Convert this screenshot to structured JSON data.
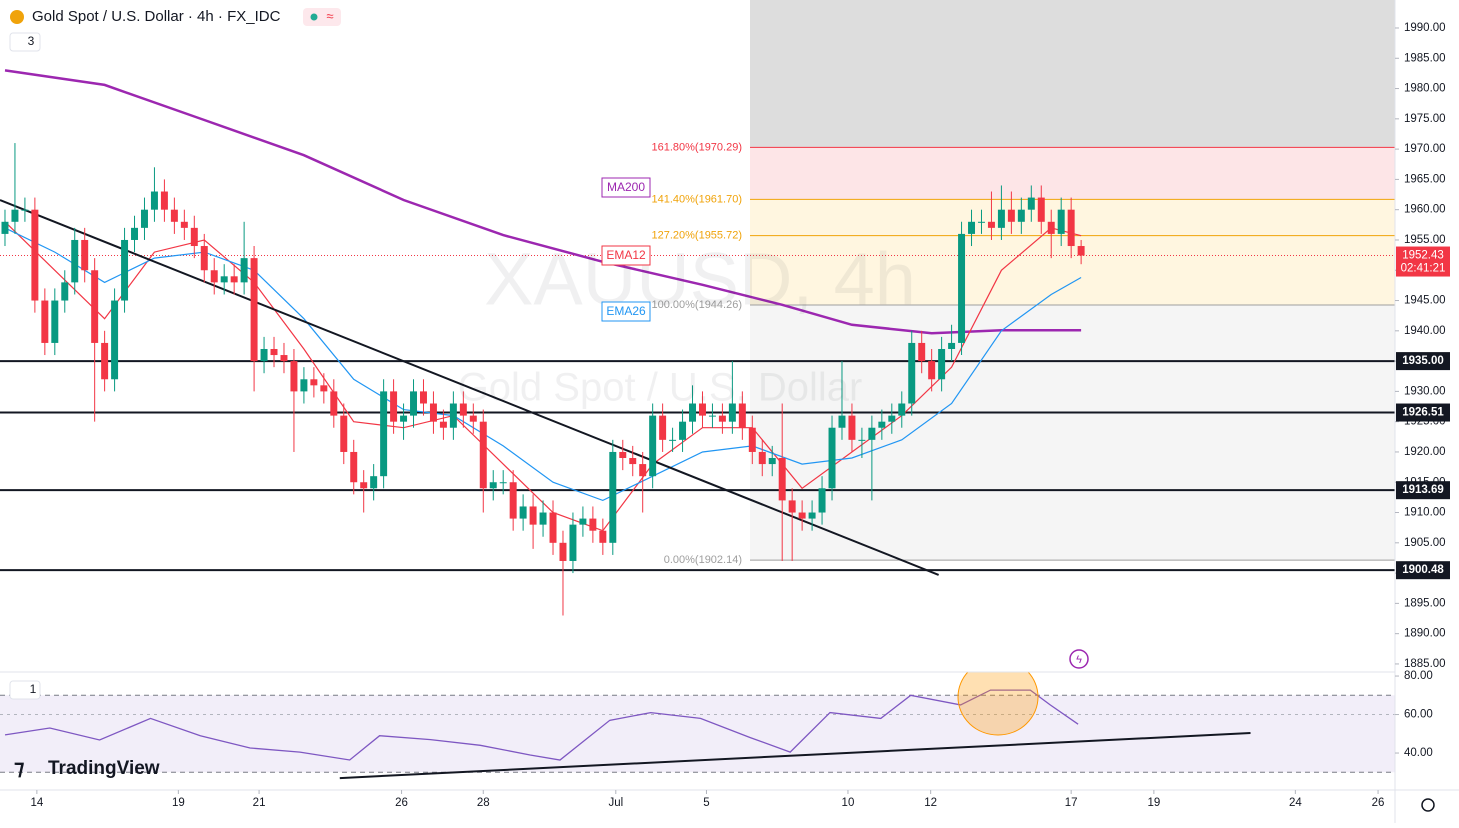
{
  "header": {
    "title": "Gold Spot / U.S. Dollar · 4h · FX_IDC",
    "pane_count": "3",
    "rsi_pane_count": "1",
    "watermark_symbol": "XAUUSD, 4h",
    "watermark_name": "Gold Spot / U.S. Dollar",
    "branding": "TradingView",
    "countdown": "02:41:21"
  },
  "chart_data": [
    {
      "type": "candlestick",
      "title": "Gold Spot / U.S. Dollar · 4h · FX_IDC",
      "up_color": "#089981",
      "down_color": "#f23645",
      "open": [
        1956,
        1958,
        1960,
        1960,
        1945,
        1938,
        1945,
        1948,
        1955,
        1950,
        1938,
        1932,
        1945,
        1955,
        1957,
        1960,
        1963,
        1960,
        1958,
        1957,
        1954,
        1950,
        1948,
        1949,
        1948,
        1952,
        1935,
        1937,
        1936,
        1935,
        1930,
        1932,
        1931,
        1930,
        1926,
        1920,
        1915,
        1914,
        1916,
        1930,
        1925,
        1926,
        1930,
        1928,
        1925,
        1924,
        1928,
        1926,
        1925,
        1914,
        1915,
        1915,
        1909,
        1911,
        1908,
        1910,
        1905,
        1902,
        1908,
        1909,
        1907,
        1905,
        1920,
        1919,
        1918,
        1916,
        1926,
        1922,
        1922,
        1925,
        1928,
        1926,
        1926,
        1925,
        1928,
        1924,
        1920,
        1918,
        1919,
        1912,
        1910,
        1909,
        1910,
        1914,
        1924,
        1926,
        1922,
        1922,
        1924,
        1925,
        1926,
        1928,
        1938,
        1935,
        1932,
        1937,
        1938,
        1956,
        1958,
        1958,
        1957,
        1960,
        1958,
        1960,
        1962,
        1958,
        1956,
        1960,
        1954
      ],
      "high": [
        1960,
        1971,
        1962,
        1962,
        1947,
        1947,
        1950,
        1957,
        1957,
        1952,
        1940,
        1947,
        1957,
        1959,
        1962,
        1967,
        1965,
        1962,
        1960,
        1959,
        1956,
        1952,
        1951,
        1951,
        1958,
        1954,
        1939,
        1939,
        1938,
        1937,
        1934,
        1934,
        1933,
        1932,
        1928,
        1922,
        1917,
        1918,
        1932,
        1932,
        1928,
        1932,
        1932,
        1930,
        1927,
        1930,
        1930,
        1928,
        1927,
        1917,
        1917,
        1917,
        1913,
        1913,
        1912,
        1912,
        1907,
        1910,
        1911,
        1911,
        1909,
        1922,
        1922,
        1921,
        1920,
        1928,
        1928,
        1924,
        1927,
        1931,
        1930,
        1928,
        1928,
        1935,
        1930,
        1926,
        1922,
        1921,
        1928,
        1914,
        1912,
        1912,
        1916,
        1926,
        1935,
        1928,
        1924,
        1926,
        1927,
        1928,
        1930,
        1940,
        1940,
        1937,
        1939,
        1941,
        1958,
        1960,
        1960,
        1963,
        1964,
        1963,
        1962,
        1964,
        1964,
        1960,
        1962,
        1962,
        1955
      ],
      "low": [
        1954,
        1956,
        1958,
        1943,
        1936,
        1936,
        1943,
        1946,
        1948,
        1925,
        1930,
        1930,
        1943,
        1953,
        1955,
        1958,
        1958,
        1956,
        1955,
        1952,
        1948,
        1946,
        1946,
        1946,
        1946,
        1930,
        1933,
        1934,
        1933,
        1920,
        1928,
        1929,
        1928,
        1924,
        1918,
        1913,
        1910,
        1912,
        1914,
        1923,
        1922,
        1924,
        1926,
        1923,
        1922,
        1922,
        1924,
        1923,
        1910,
        1912,
        1913,
        1907,
        1907,
        1904,
        1906,
        1903,
        1893,
        1900,
        1906,
        1905,
        1903,
        1903,
        1917,
        1916,
        1910,
        1914,
        1920,
        1920,
        1920,
        1923,
        1924,
        1924,
        1923,
        1923,
        1922,
        1918,
        1916,
        1916,
        1902,
        1902,
        1907,
        1907,
        1908,
        1912,
        1922,
        1920,
        1919,
        1912,
        1922,
        1923,
        1924,
        1926,
        1933,
        1930,
        1930,
        1935,
        1936,
        1954,
        1956,
        1955,
        1955,
        1956,
        1956,
        1958,
        1956,
        1952,
        1954,
        1952,
        1951
      ],
      "close": [
        1958,
        1960,
        1960,
        1945,
        1938,
        1945,
        1948,
        1955,
        1950,
        1938,
        1932,
        1945,
        1955,
        1957,
        1960,
        1963,
        1960,
        1958,
        1957,
        1954,
        1950,
        1948,
        1949,
        1948,
        1952,
        1935,
        1937,
        1936,
        1935,
        1930,
        1932,
        1931,
        1930,
        1926,
        1920,
        1915,
        1914,
        1916,
        1930,
        1925,
        1926,
        1930,
        1928,
        1925,
        1924,
        1928,
        1926,
        1925,
        1914,
        1915,
        1915,
        1909,
        1911,
        1908,
        1910,
        1905,
        1902,
        1908,
        1909,
        1907,
        1905,
        1920,
        1919,
        1918,
        1916,
        1926,
        1922,
        1922,
        1925,
        1928,
        1926,
        1926,
        1925,
        1928,
        1924,
        1920,
        1918,
        1919,
        1912,
        1910,
        1909,
        1910,
        1914,
        1924,
        1926,
        1922,
        1922,
        1924,
        1925,
        1926,
        1928,
        1938,
        1935,
        1932,
        1937,
        1938,
        1956,
        1958,
        1958,
        1957,
        1960,
        1958,
        1960,
        1962,
        1958,
        1956,
        1960,
        1954,
        1952.43
      ],
      "series": [
        {
          "name": "MA200",
          "color": "#9c27b0",
          "x": [
            0,
            10,
            20,
            30,
            40,
            50,
            60,
            70,
            78,
            85,
            93,
            100,
            108
          ],
          "values": [
            1983,
            1980.6,
            1974.8,
            1969,
            1961.6,
            1955.8,
            1951.4,
            1947.6,
            1944.3,
            1941,
            1939.6,
            1940.1,
            1940.1
          ]
        },
        {
          "name": "EMA12",
          "color": "#f23645",
          "x": [
            0,
            5,
            10,
            15,
            20,
            25,
            30,
            35,
            40,
            45,
            50,
            55,
            60,
            65,
            70,
            75,
            80,
            85,
            90,
            95,
            100,
            105,
            108
          ],
          "values": [
            1958,
            1950,
            1942,
            1953,
            1955,
            1948,
            1937,
            1925,
            1924,
            1926,
            1918,
            1910,
            1907,
            1918,
            1924,
            1924,
            1914,
            1920,
            1926,
            1934,
            1950,
            1957,
            1955.7
          ]
        },
        {
          "name": "EMA26",
          "color": "#2196f3",
          "x": [
            0,
            5,
            10,
            15,
            20,
            25,
            30,
            35,
            40,
            45,
            50,
            55,
            60,
            65,
            70,
            75,
            80,
            85,
            90,
            95,
            100,
            105,
            108
          ],
          "values": [
            1957,
            1953,
            1948,
            1952,
            1953,
            1950,
            1942,
            1932,
            1927,
            1926,
            1921,
            1915,
            1912,
            1916,
            1920,
            1921,
            1918,
            1919,
            1922,
            1928,
            1940,
            1946,
            1948.8
          ]
        }
      ],
      "levels": [
        {
          "value": 1935.0,
          "label": "1935.00"
        },
        {
          "value": 1926.51,
          "label": "1926.51"
        },
        {
          "value": 1913.69,
          "label": "1913.69"
        },
        {
          "value": 1900.48,
          "label": "1900.48"
        }
      ],
      "fib": [
        {
          "value": 1970.29,
          "label": "161.80%(1970.29)",
          "color": "#f23645"
        },
        {
          "value": 1961.7,
          "label": "141.40%(1961.70)",
          "color": "#f0a30a"
        },
        {
          "value": 1955.72,
          "label": "127.20%(1955.72)",
          "color": "#f0a30a"
        },
        {
          "value": 1944.26,
          "label": "100.00%(1944.26)",
          "color": "#9e9e9e"
        },
        {
          "value": 1902.14,
          "label": "0.00%(1902.14)",
          "color": "#9e9e9e"
        }
      ],
      "trendline": {
        "x": [
          -0.5,
          93.7
        ],
        "y": [
          1961.6,
          1899.7
        ]
      },
      "xlim": [
        -0.5,
        139.5
      ],
      "ylim": [
        1883.67,
        1994.62
      ],
      "yticks": [
        {
          "value": 1885,
          "label": "1885.00"
        },
        {
          "value": 1890,
          "label": "1890.00"
        },
        {
          "value": 1895,
          "label": "1895.00"
        },
        {
          "value": 1900,
          "label": "1900.00"
        },
        {
          "value": 1905,
          "label": "1905.00"
        },
        {
          "value": 1910,
          "label": "1910.00"
        },
        {
          "value": 1915,
          "label": "1915.00"
        },
        {
          "value": 1920,
          "label": "1920.00"
        },
        {
          "value": 1925,
          "label": "1925.00"
        },
        {
          "value": 1930,
          "label": "1930.00"
        },
        {
          "value": 1935,
          "label": "1935.00"
        },
        {
          "value": 1940,
          "label": "1940.00"
        },
        {
          "value": 1945,
          "label": "1945.00"
        },
        {
          "value": 1950,
          "label": "1950.00"
        },
        {
          "value": 1955,
          "label": "1955.00"
        },
        {
          "value": 1960,
          "label": "1960.00"
        },
        {
          "value": 1965,
          "label": "1965.00"
        },
        {
          "value": 1970,
          "label": "1970.00"
        },
        {
          "value": 1975,
          "label": "1975.00"
        },
        {
          "value": 1980,
          "label": "1980.00"
        },
        {
          "value": 1985,
          "label": "1985.00"
        },
        {
          "value": 1990,
          "label": "1990.00"
        }
      ],
      "xticks": [
        {
          "value": 3.2,
          "label": "14"
        },
        {
          "value": 17.4,
          "label": "19"
        },
        {
          "value": 25.5,
          "label": "21"
        },
        {
          "value": 39.8,
          "label": "26"
        },
        {
          "value": 48,
          "label": "28"
        },
        {
          "value": 61.3,
          "label": "Jul"
        },
        {
          "value": 70.4,
          "label": "5"
        },
        {
          "value": 84.6,
          "label": "10"
        },
        {
          "value": 92.9,
          "label": "12"
        },
        {
          "value": 107,
          "label": "17"
        },
        {
          "value": 115.3,
          "label": "19"
        },
        {
          "value": 129.5,
          "label": "24"
        },
        {
          "value": 137.8,
          "label": "26"
        }
      ]
    },
    {
      "type": "line",
      "series": [
        {
          "name": "RSI",
          "color": "#7e57c2",
          "x": [
            0,
            4.5,
            9.5,
            14.6,
            19.6,
            24.6,
            29.6,
            34.6,
            37.6,
            42.7,
            47.7,
            52.7,
            55.7,
            60.7,
            64.8,
            69.8,
            74.8,
            78.8,
            82.8,
            87.9,
            90.9,
            95.9,
            98.9,
            102.9,
            104.9,
            107.7
          ],
          "values": [
            49.4,
            53,
            46.8,
            58,
            49,
            42.6,
            40.5,
            36.4,
            49,
            47,
            44,
            39,
            36.4,
            57,
            61,
            58,
            48,
            40.5,
            61,
            58,
            70,
            65,
            72.7,
            72.7,
            65,
            55
          ]
        }
      ],
      "bands": [
        70,
        30
      ],
      "trendline": {
        "x": [
          33.6,
          125
        ],
        "y": [
          27,
          50.4
        ]
      },
      "ylim": [
        20.8,
        82.1
      ],
      "yticks": [
        {
          "value": 40,
          "label": "40.00"
        },
        {
          "value": 60,
          "label": "60.00"
        },
        {
          "value": 80,
          "label": "80.00"
        }
      ]
    }
  ]
}
